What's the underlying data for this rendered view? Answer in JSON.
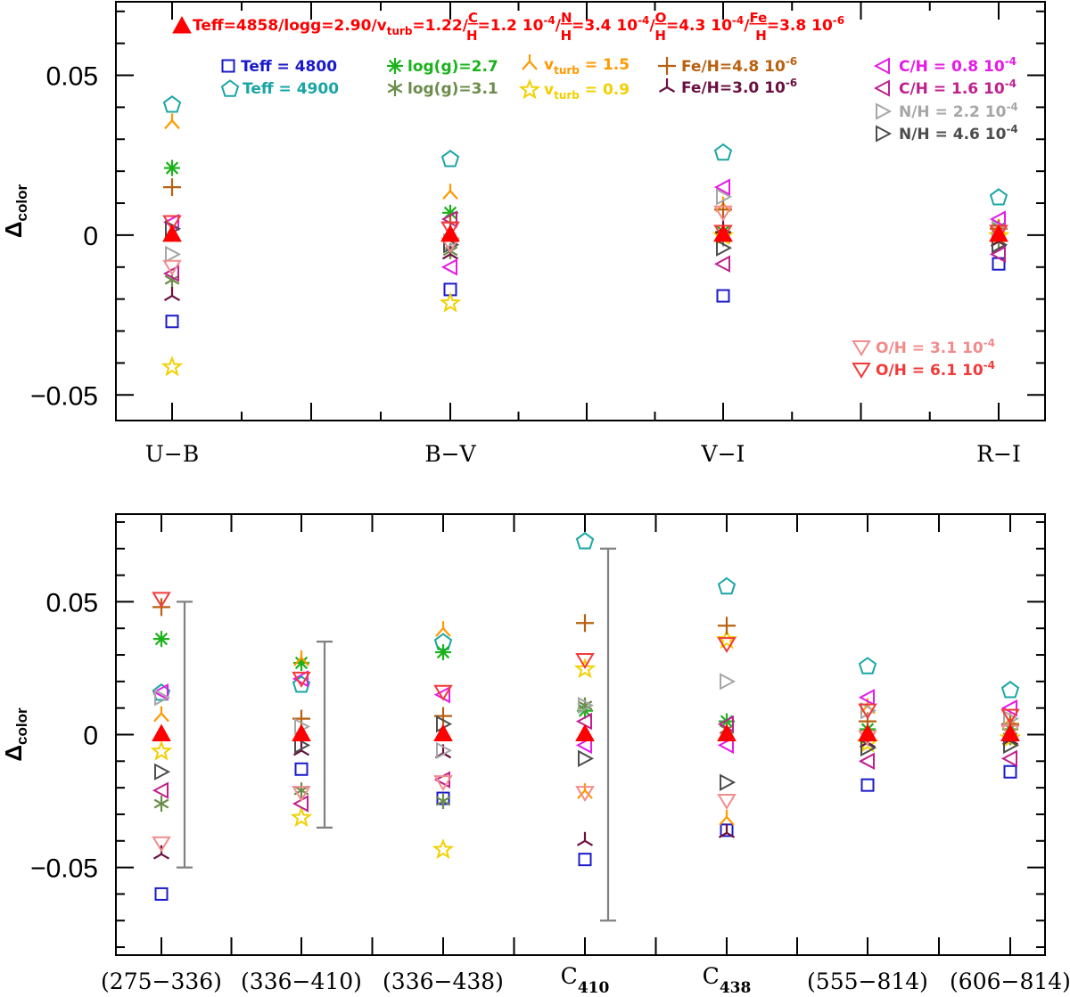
{
  "chart_data": {
    "type": "scatter",
    "title": "Teff=4858/logg=2.90/v_turb=1.22/(C/H)=1.2 10^-4/(N/H)=3.4 10^-4/(O/H)=4.3 10^-4/(Fe/H)=3.8 10^-6",
    "reference": {
      "parts": [
        "Teff=4858/logg=2.90/v",
        "turb",
        "=1.22/",
        "C",
        "H",
        "=1.2  10",
        "-4",
        "/",
        "N",
        "H",
        "=3.4  10",
        "-4",
        "/",
        "O",
        "H",
        "=4.3  10",
        "-4",
        "/",
        "Fe",
        "H",
        "=3.8  10",
        "-6"
      ],
      "color": "#ff0000",
      "marker": "filled-triangle"
    },
    "ylabel": {
      "main": "Δ",
      "sub": "color"
    },
    "series": [
      {
        "key": "teff_lo",
        "parts": [
          "Teff  =  4800"
        ],
        "color": "#1a1acc",
        "marker": "square"
      },
      {
        "key": "teff_hi",
        "parts": [
          "Teff  =  4900"
        ],
        "color": "#1aa6a6",
        "marker": "pentagon"
      },
      {
        "key": "logg_lo",
        "parts": [
          "log(g)=2.7"
        ],
        "color": "#1ab21a",
        "marker": "asterisk8"
      },
      {
        "key": "logg_hi",
        "parts": [
          "log(g)=3.1"
        ],
        "color": "#6b8c4a",
        "marker": "asterisk6"
      },
      {
        "key": "vt_hi",
        "parts": [
          "v",
          "turb",
          "  =  1.5"
        ],
        "color": "#ff9900",
        "marker": "tri-bar-up"
      },
      {
        "key": "vt_lo",
        "parts": [
          "v",
          "turb",
          "  =  0.9"
        ],
        "color": "#f2d000",
        "marker": "star"
      },
      {
        "key": "fe_hi",
        "parts": [
          "Fe/H=4.8  10",
          "-6"
        ],
        "color": "#b86010",
        "marker": "plus"
      },
      {
        "key": "fe_lo",
        "parts": [
          "Fe/H=3.0  10",
          "-6"
        ],
        "color": "#6b1040",
        "marker": "tri-y"
      },
      {
        "key": "c_lo",
        "parts": [
          "C/H  =  0.8  10",
          "-4"
        ],
        "color": "#e61ae6",
        "marker": "tri-left"
      },
      {
        "key": "c_hi",
        "parts": [
          "C/H  =  1.6  10",
          "-4"
        ],
        "color": "#c0208e",
        "marker": "tri-left"
      },
      {
        "key": "n_lo",
        "parts": [
          "N/H  =  2.2  10",
          "-4"
        ],
        "color": "#a6a6a6",
        "marker": "tri-right"
      },
      {
        "key": "n_hi",
        "parts": [
          "N/H  =  4.6  10",
          "-4"
        ],
        "color": "#4d4d4d",
        "marker": "tri-right"
      },
      {
        "key": "o_lo",
        "parts": [
          "O/H  =  3.1  10",
          "-4"
        ],
        "color": "#f28c8c",
        "marker": "tri-down"
      },
      {
        "key": "o_hi",
        "parts": [
          "O/H  =  6.1  10",
          "-4"
        ],
        "color": "#f23a3a",
        "marker": "tri-down"
      }
    ],
    "panels": [
      {
        "key": "top",
        "ylim": [
          -0.058,
          0.073
        ],
        "yticks": [
          {
            "value": -0.05,
            "label": "−0.05"
          },
          {
            "value": 0,
            "label": "0"
          },
          {
            "value": 0.05,
            "label": "0.05"
          }
        ],
        "categories": [
          {
            "label": "U−B",
            "sub": ""
          },
          {
            "label": "B−V",
            "sub": ""
          },
          {
            "label": "V−I",
            "sub": ""
          },
          {
            "label": "R−I",
            "sub": ""
          }
        ],
        "values": {
          "teff_lo": [
            -0.027,
            -0.017,
            -0.019,
            -0.009
          ],
          "teff_hi": [
            0.041,
            0.024,
            0.026,
            0.012
          ],
          "logg_lo": [
            0.021,
            0.007,
            0.001,
            0.002
          ],
          "logg_hi": [
            -0.014,
            -0.005,
            -0.001,
            -0.002
          ],
          "vt_hi": [
            0.035,
            0.013,
            0.009,
            0.002
          ],
          "vt_lo": [
            -0.041,
            -0.021,
            0.0,
            0.0
          ],
          "fe_hi": [
            0.015,
            0.004,
            0.008,
            0.002
          ],
          "fe_lo": [
            -0.019,
            -0.006,
            0.002,
            -0.002
          ],
          "c_lo": [
            0.004,
            -0.01,
            0.015,
            0.005
          ],
          "c_hi": [
            -0.012,
            0.005,
            -0.009,
            -0.006
          ],
          "n_lo": [
            -0.006,
            -0.002,
            0.012,
            0.002
          ],
          "n_hi": [
            0.002,
            -0.003,
            -0.004,
            -0.003
          ],
          "o_lo": [
            -0.01,
            -0.003,
            0.007,
            0.001
          ],
          "o_hi": [
            0.004,
            0.002,
            0.001,
            0.001
          ]
        },
        "errorbars": []
      },
      {
        "key": "bottom",
        "ylim": [
          -0.083,
          0.083
        ],
        "yticks": [
          {
            "value": -0.05,
            "label": "−0.05"
          },
          {
            "value": 0,
            "label": "0"
          },
          {
            "value": 0.05,
            "label": "0.05"
          }
        ],
        "categories": [
          {
            "label": "(275−336)",
            "sub": ""
          },
          {
            "label": "(336−410)",
            "sub": ""
          },
          {
            "label": "(336−438)",
            "sub": ""
          },
          {
            "label": "C",
            "sub": "410"
          },
          {
            "label": "C",
            "sub": "438"
          },
          {
            "label": "(555−814)",
            "sub": ""
          },
          {
            "label": "(606−814)",
            "sub": ""
          }
        ],
        "values": {
          "teff_lo": [
            -0.06,
            -0.013,
            -0.024,
            -0.047,
            -0.036,
            -0.019,
            -0.014
          ],
          "teff_hi": [
            0.016,
            0.019,
            0.035,
            0.073,
            0.056,
            0.026,
            0.017
          ],
          "logg_lo": [
            0.036,
            0.027,
            0.031,
            0.009,
            0.005,
            0.002,
            0.002
          ],
          "logg_hi": [
            -0.026,
            -0.021,
            -0.025,
            0.011,
            0.002,
            -0.001,
            -0.001
          ],
          "vt_hi": [
            0.007,
            0.028,
            0.039,
            -0.022,
            -0.032,
            0.01,
            0.005
          ],
          "vt_lo": [
            -0.006,
            -0.031,
            -0.043,
            0.025,
            0.036,
            -0.003,
            -0.001
          ],
          "fe_hi": [
            0.048,
            0.006,
            0.007,
            0.042,
            0.041,
            0.005,
            0.004
          ],
          "fe_lo": [
            -0.045,
            -0.006,
            -0.007,
            -0.04,
            -0.037,
            -0.003,
            -0.002
          ],
          "c_lo": [
            0.016,
            0.021,
            0.015,
            -0.004,
            -0.004,
            0.014,
            0.01
          ],
          "c_hi": [
            -0.021,
            -0.026,
            -0.017,
            0.005,
            0.004,
            -0.01,
            -0.009
          ],
          "n_lo": [
            0.014,
            0.003,
            -0.006,
            0.011,
            0.02,
            0.009,
            0.006
          ],
          "n_hi": [
            -0.014,
            -0.004,
            0.004,
            -0.009,
            -0.018,
            -0.005,
            -0.004
          ],
          "o_lo": [
            -0.041,
            -0.022,
            -0.018,
            -0.022,
            -0.025,
            -0.001,
            0.001
          ],
          "o_hi": [
            0.051,
            0.021,
            0.016,
            0.028,
            0.034,
            0.009,
            0.007
          ]
        },
        "errorbars": [
          {
            "category": 0,
            "value": 0.05
          },
          {
            "category": 1,
            "value": 0.035
          },
          {
            "category": 3,
            "value": 0.07
          }
        ]
      }
    ]
  }
}
